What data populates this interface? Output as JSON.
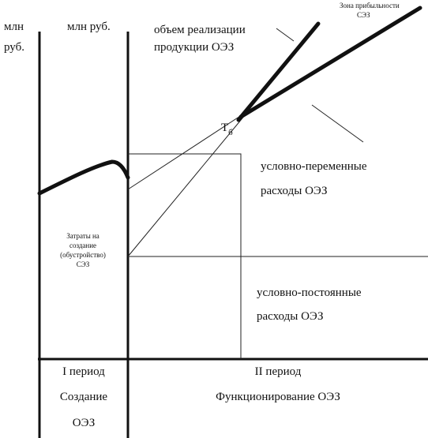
{
  "axes": {
    "left_unit_1": "млн",
    "left_unit_2": "руб.",
    "inner_unit": "млн  руб."
  },
  "labels": {
    "revenue_1": "объем реализации",
    "revenue_2": "продукции ОЭЗ",
    "profit_zone_1": "Зона прибыльности",
    "profit_zone_2": "СЭЗ",
    "breakeven": "Т",
    "breakeven_sub": "б",
    "variable_1": "условно-переменные",
    "variable_2": "расходы  ОЭЗ",
    "fixed_1": "условно-постоянные",
    "fixed_2": "расходы ОЭЗ",
    "setup_1": "Затраты на",
    "setup_2": "создание",
    "setup_3": "(обустройство)",
    "setup_4": "СЭЗ"
  },
  "periods": {
    "first_1": "I период",
    "first_2": "Создание",
    "first_3": "ОЭЗ",
    "second_1": "II период",
    "second_2": "Функционирование ОЭЗ"
  }
}
